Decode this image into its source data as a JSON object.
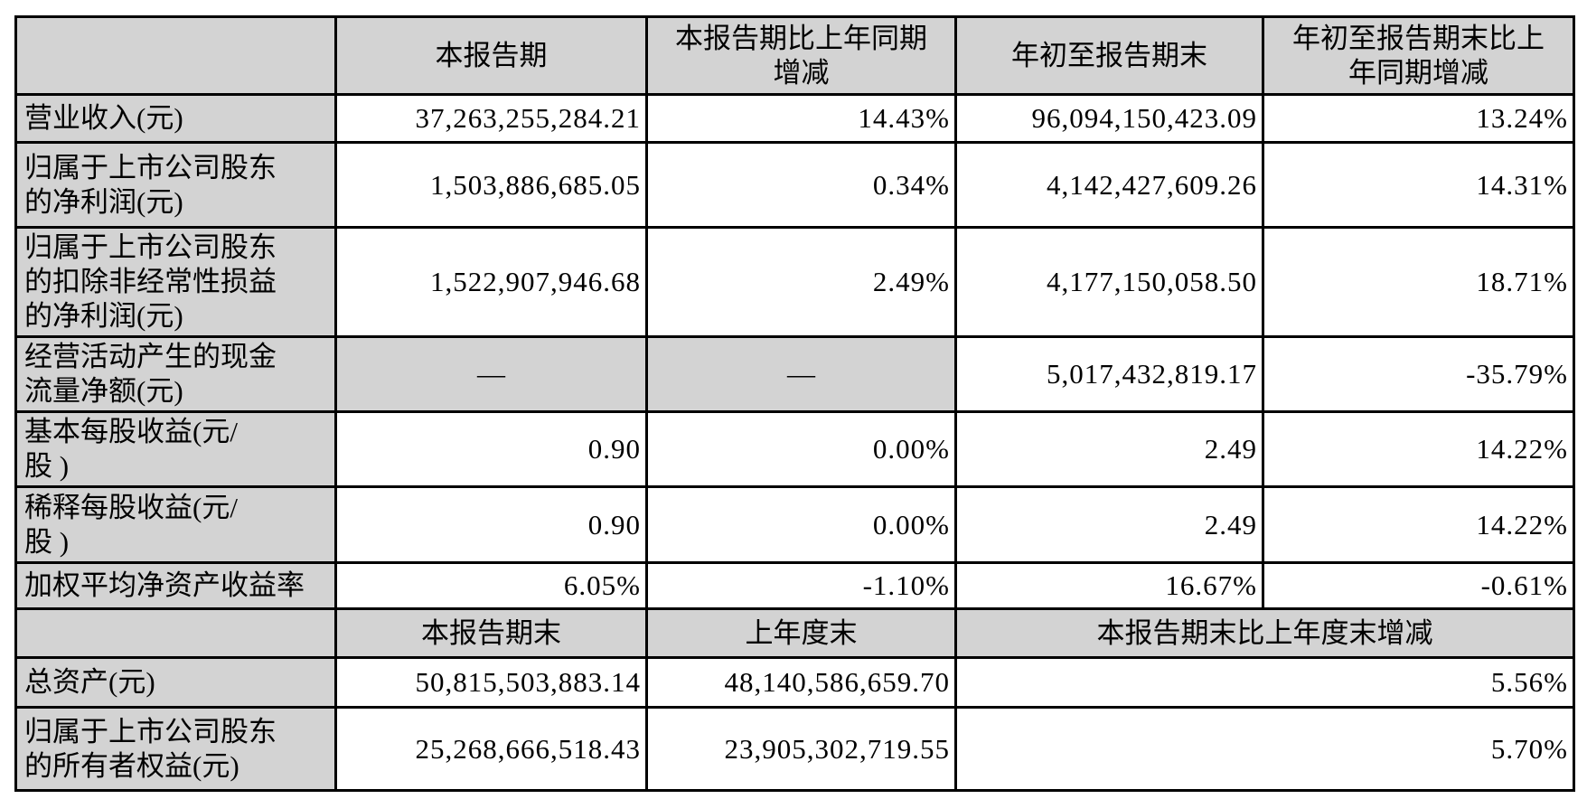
{
  "styles": {
    "grid_gray": "#d3d3d3",
    "border_color": "#000000",
    "text_color": "#000000"
  },
  "table": {
    "section1": {
      "header": {
        "corner": "",
        "col1": "本报告期",
        "col2": "本报告期比上年同期\n增减",
        "col3": "年初至报告期末",
        "col4": "年初至报告期末比上\n年同期增减"
      },
      "rows": [
        {
          "label": "营业收入(元)",
          "c1": "37,263,255,284.21",
          "c2": "14.43%",
          "c3": "96,094,150,423.09",
          "c4": "13.24%"
        },
        {
          "label": "归属于上市公司股东\n的净利润(元)",
          "c1": "1,503,886,685.05",
          "c2": "0.34%",
          "c3": "4,142,427,609.26",
          "c4": "14.31%"
        },
        {
          "label": "归属于上市公司股东\n的扣除非经常性损益\n的净利润(元)",
          "c1": "1,522,907,946.68",
          "c2": "2.49%",
          "c3": "4,177,150,058.50",
          "c4": "18.71%"
        },
        {
          "label": "经营活动产生的现金\n流量净额(元)",
          "c1": "—",
          "c2": "—",
          "c3": "5,017,432,819.17",
          "c4": "-35.79%"
        },
        {
          "label": "基本每股收益(元/\n股 )",
          "c1": "0.90",
          "c2": "0.00%",
          "c3": "2.49",
          "c4": "14.22%"
        },
        {
          "label": "稀释每股收益(元/\n股 )",
          "c1": "0.90",
          "c2": "0.00%",
          "c3": "2.49",
          "c4": "14.22%"
        },
        {
          "label": "加权平均净资产收益率",
          "c1": "6.05%",
          "c2": "-1.10%",
          "c3": "16.67%",
          "c4": "-0.61%"
        }
      ]
    },
    "section2": {
      "header": {
        "corner": "",
        "col1": "本报告期末",
        "col2": "上年度末",
        "col34": "本报告期末比上年度末增减"
      },
      "rows": [
        {
          "label": "总资产(元)",
          "c1": "50,815,503,883.14",
          "c2": "48,140,586,659.70",
          "c34": "5.56%"
        },
        {
          "label": "归属于上市公司股东\n的所有者权益(元)",
          "c1": "25,268,666,518.43",
          "c2": "23,905,302,719.55",
          "c34": "5.70%"
        }
      ]
    }
  }
}
